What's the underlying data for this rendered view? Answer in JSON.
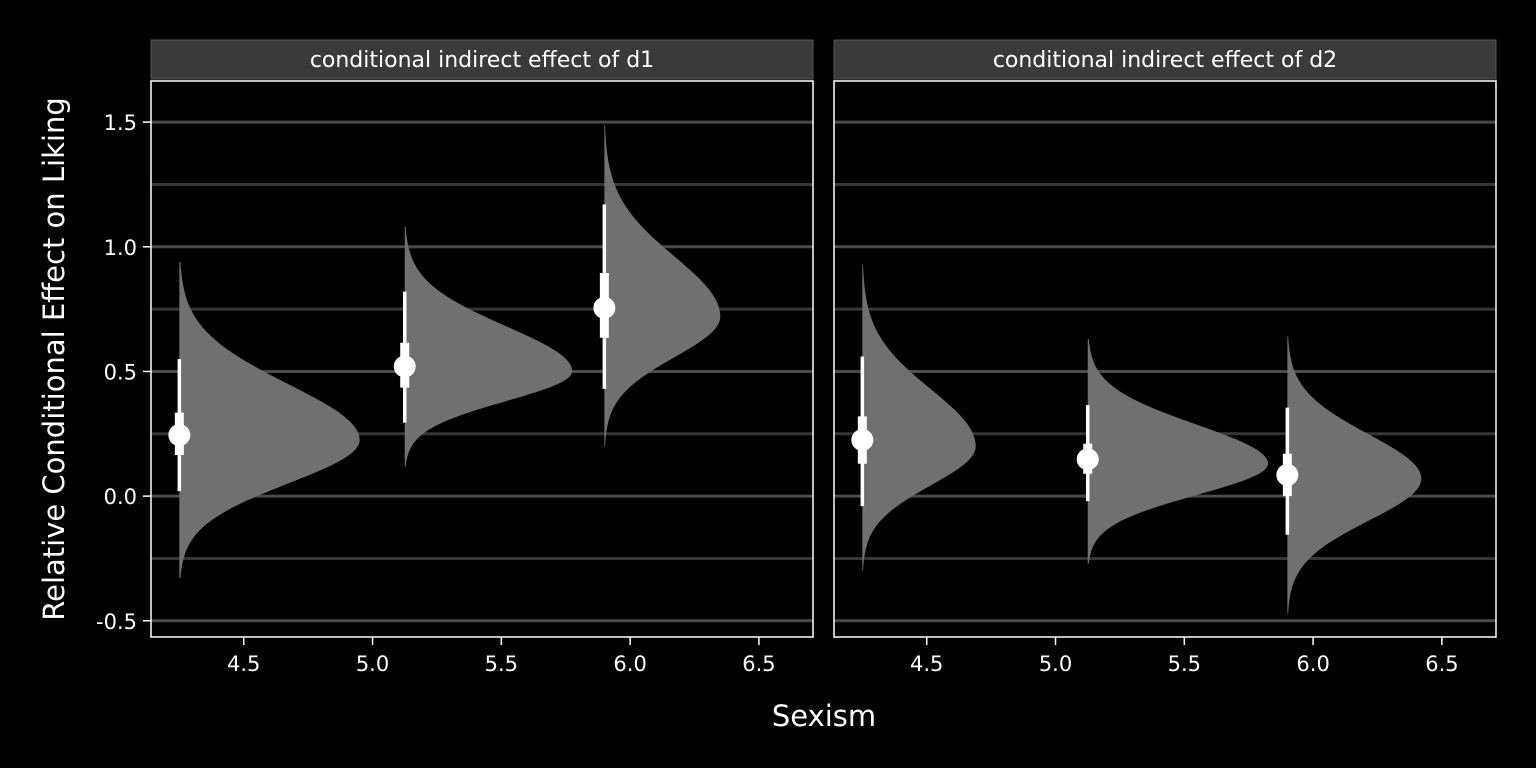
{
  "chart_data": {
    "type": "halfeye",
    "xlabel": "Sexism",
    "ylabel": "Relative Conditional Effect on Liking",
    "xlim": [
      4.14,
      6.71
    ],
    "ylim": [
      -0.565,
      1.665
    ],
    "xticks": [
      4.5,
      5.0,
      5.5,
      6.0,
      6.5
    ],
    "xtick_labels": [
      "4.5",
      "5.0",
      "5.5",
      "6.0",
      "6.5"
    ],
    "yticks": [
      -0.5,
      0.0,
      0.5,
      1.0,
      1.5
    ],
    "ytick_labels": [
      "-0.5",
      "0.0",
      "0.5",
      "1.0",
      "1.5"
    ],
    "gridlines_y": [
      -0.5,
      -0.25,
      0.0,
      0.25,
      0.5,
      0.75,
      1.0,
      1.25,
      1.5
    ],
    "colors": {
      "background": "#000000",
      "density": "#707070",
      "interval": "#ffffff",
      "grid": "#444444",
      "strip": "#3a3a3a"
    },
    "panels": [
      {
        "strip": "conditional indirect effect of d1",
        "distributions": [
          {
            "x": 4.25,
            "median": 0.245,
            "inner": [
              0.165,
              0.335
            ],
            "outer": [
              0.02,
              0.55
            ],
            "range": [
              -0.33,
              0.94
            ],
            "peak": 0.225,
            "width": 0.7
          },
          {
            "x": 5.125,
            "median": 0.52,
            "inner": [
              0.435,
              0.615
            ],
            "outer": [
              0.295,
              0.82
            ],
            "range": [
              0.12,
              1.08
            ],
            "peak": 0.5,
            "width": 0.65
          },
          {
            "x": 5.9,
            "median": 0.755,
            "inner": [
              0.635,
              0.895
            ],
            "outer": [
              0.43,
              1.17
            ],
            "range": [
              0.2,
              1.49
            ],
            "peak": 0.72,
            "width": 0.45
          }
        ]
      },
      {
        "strip": "conditional indirect effect of d2",
        "distributions": [
          {
            "x": 4.25,
            "median": 0.225,
            "inner": [
              0.13,
              0.32
            ],
            "outer": [
              -0.04,
              0.56
            ],
            "range": [
              -0.3,
              0.93
            ],
            "peak": 0.2,
            "width": 0.44
          },
          {
            "x": 5.125,
            "median": 0.148,
            "inner": [
              0.09,
              0.21
            ],
            "outer": [
              -0.02,
              0.365
            ],
            "range": [
              -0.27,
              0.63
            ],
            "peak": 0.13,
            "width": 0.7
          },
          {
            "x": 5.9,
            "median": 0.085,
            "inner": [
              0.0,
              0.17
            ],
            "outer": [
              -0.155,
              0.355
            ],
            "range": [
              -0.47,
              0.64
            ],
            "peak": 0.07,
            "width": 0.52
          }
        ]
      }
    ]
  }
}
